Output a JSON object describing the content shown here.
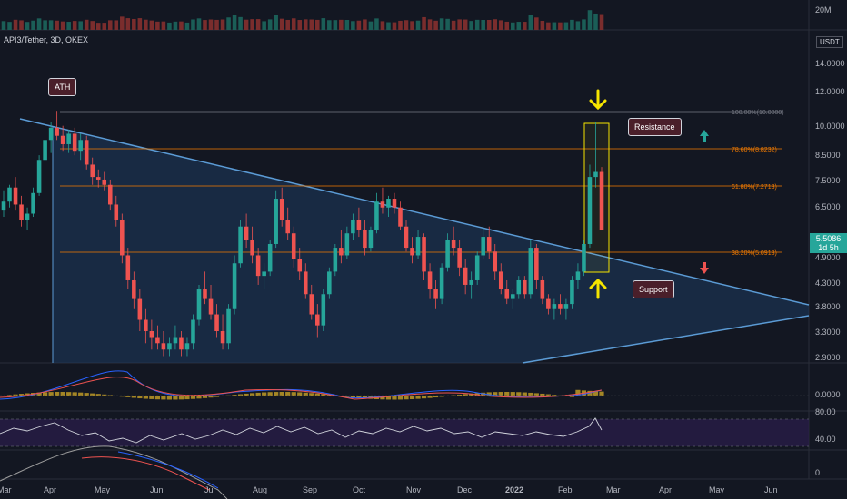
{
  "legend": {
    "symbol": "API3/Tether, 3D, OKEX"
  },
  "currency_badge": "USDT",
  "last_price": {
    "value": "5.5086",
    "countdown": "1d 5h",
    "color": "#26a69a"
  },
  "callouts": {
    "ath": "ATH",
    "resistance": "Resistance",
    "support": "Support"
  },
  "colors": {
    "up": "#26a69a",
    "down": "#ef5350",
    "triangle_fill": "#1e3a5f",
    "fib_line": "#f57c00",
    "trend_line": "#5b9bd5",
    "arrow_yellow": "#f5e400",
    "rsi_band": "#2a1e4a"
  },
  "price_axis": [
    "14.0000",
    "12.0000",
    "10.0000",
    "8.5000",
    "7.5000",
    "6.5000",
    "4.9000",
    "4.3000",
    "3.8000",
    "3.3000",
    "2.9000"
  ],
  "volume_axis": "20M",
  "macd_axis": "0.0000",
  "rsi_axis": [
    "80.00",
    "40.00"
  ],
  "bottom_axis": "0",
  "time_axis": [
    "Mar",
    "Apr",
    "May",
    "Jun",
    "Jul",
    "Aug",
    "Sep",
    "Oct",
    "Nov",
    "Dec",
    "2022",
    "Feb",
    "Mar",
    "Apr",
    "May",
    "Jun"
  ],
  "fib_levels": [
    {
      "label": "100.00%(10.0000)"
    },
    {
      "label": "78.60%(8.8232)"
    },
    {
      "label": "61.80%(7.2713)"
    },
    {
      "label": "38.20%(5.0913)"
    }
  ],
  "chart_data": {
    "type": "candlestick",
    "title": "API3/Tether, 3D, OKEX",
    "price_scale": "log",
    "ylim": [
      2.7,
      15.5
    ],
    "candles_ohlc": [
      [
        6.1,
        6.8,
        5.9,
        6.4
      ],
      [
        6.4,
        7.0,
        6.2,
        6.9
      ],
      [
        6.9,
        7.3,
        6.1,
        6.3
      ],
      [
        6.3,
        6.6,
        5.6,
        5.8
      ],
      [
        5.8,
        6.2,
        5.5,
        6.0
      ],
      [
        6.0,
        6.9,
        5.9,
        6.7
      ],
      [
        6.7,
        8.2,
        6.6,
        8.0
      ],
      [
        8.0,
        9.2,
        7.8,
        8.9
      ],
      [
        8.9,
        9.8,
        8.3,
        9.5
      ],
      [
        9.5,
        10.4,
        8.9,
        9.1
      ],
      [
        9.1,
        9.6,
        8.4,
        8.7
      ],
      [
        8.7,
        9.4,
        8.3,
        9.2
      ],
      [
        9.2,
        9.5,
        8.2,
        8.4
      ],
      [
        8.4,
        9.2,
        8.0,
        8.9
      ],
      [
        8.9,
        9.1,
        7.6,
        7.8
      ],
      [
        7.8,
        8.1,
        7.0,
        7.3
      ],
      [
        7.3,
        7.6,
        6.9,
        7.2
      ],
      [
        7.2,
        7.5,
        6.8,
        7.0
      ],
      [
        7.0,
        7.2,
        6.1,
        6.3
      ],
      [
        6.3,
        6.6,
        5.6,
        5.8
      ],
      [
        5.8,
        6.0,
        4.6,
        4.8
      ],
      [
        4.8,
        5.0,
        4.0,
        4.2
      ],
      [
        4.2,
        4.4,
        3.6,
        3.8
      ],
      [
        3.8,
        4.0,
        3.2,
        3.4
      ],
      [
        3.4,
        3.6,
        3.0,
        3.2
      ],
      [
        3.2,
        3.4,
        2.9,
        3.1
      ],
      [
        3.1,
        3.3,
        2.9,
        3.0
      ],
      [
        3.0,
        3.2,
        2.8,
        2.9
      ],
      [
        2.9,
        3.1,
        2.8,
        3.0
      ],
      [
        3.0,
        3.3,
        2.9,
        3.1
      ],
      [
        3.1,
        3.2,
        2.8,
        2.9
      ],
      [
        2.9,
        3.1,
        2.8,
        3.0
      ],
      [
        3.0,
        3.5,
        2.9,
        3.4
      ],
      [
        3.4,
        4.1,
        3.3,
        4.0
      ],
      [
        4.0,
        4.4,
        3.7,
        3.8
      ],
      [
        3.8,
        4.1,
        3.4,
        3.5
      ],
      [
        3.5,
        3.7,
        3.1,
        3.2
      ],
      [
        3.2,
        3.5,
        2.9,
        3.0
      ],
      [
        3.0,
        3.7,
        2.9,
        3.6
      ],
      [
        3.6,
        4.8,
        3.5,
        4.6
      ],
      [
        4.6,
        5.8,
        4.5,
        5.6
      ],
      [
        5.6,
        6.0,
        5.0,
        5.2
      ],
      [
        5.2,
        5.6,
        4.6,
        4.8
      ],
      [
        4.8,
        5.0,
        4.1,
        4.3
      ],
      [
        4.3,
        4.6,
        4.0,
        4.4
      ],
      [
        4.4,
        5.2,
        4.3,
        5.1
      ],
      [
        5.1,
        6.8,
        5.0,
        6.5
      ],
      [
        6.5,
        6.9,
        5.6,
        5.8
      ],
      [
        5.8,
        6.2,
        5.2,
        5.4
      ],
      [
        5.4,
        5.6,
        4.5,
        4.7
      ],
      [
        4.7,
        5.0,
        4.2,
        4.4
      ],
      [
        4.4,
        4.6,
        3.8,
        3.9
      ],
      [
        3.9,
        4.1,
        3.4,
        3.5
      ],
      [
        3.5,
        3.7,
        3.1,
        3.3
      ],
      [
        3.3,
        4.0,
        3.2,
        3.9
      ],
      [
        3.9,
        4.5,
        3.8,
        4.4
      ],
      [
        4.4,
        5.1,
        4.3,
        5.0
      ],
      [
        5.0,
        5.5,
        4.6,
        4.8
      ],
      [
        4.8,
        5.6,
        4.7,
        5.4
      ],
      [
        5.4,
        6.0,
        5.2,
        5.8
      ],
      [
        5.8,
        6.2,
        5.3,
        5.5
      ],
      [
        5.5,
        5.8,
        4.8,
        5.0
      ],
      [
        5.0,
        5.6,
        4.9,
        5.5
      ],
      [
        5.5,
        6.7,
        5.4,
        6.4
      ],
      [
        6.4,
        6.9,
        6.0,
        6.2
      ],
      [
        6.2,
        6.6,
        5.9,
        6.5
      ],
      [
        6.5,
        6.7,
        6.0,
        6.2
      ],
      [
        6.2,
        6.4,
        5.5,
        5.6
      ],
      [
        5.6,
        5.8,
        4.9,
        5.0
      ],
      [
        5.0,
        5.3,
        4.6,
        4.8
      ],
      [
        4.8,
        5.5,
        4.7,
        5.3
      ],
      [
        5.3,
        5.4,
        4.2,
        4.4
      ],
      [
        4.4,
        4.6,
        3.8,
        4.0
      ],
      [
        4.0,
        4.2,
        3.6,
        3.8
      ],
      [
        3.8,
        4.6,
        3.7,
        4.5
      ],
      [
        4.5,
        5.4,
        4.4,
        5.2
      ],
      [
        5.2,
        5.6,
        4.8,
        5.0
      ],
      [
        5.0,
        5.2,
        4.3,
        4.5
      ],
      [
        4.5,
        4.7,
        3.9,
        4.1
      ],
      [
        4.1,
        4.4,
        3.8,
        4.2
      ],
      [
        4.2,
        4.9,
        4.1,
        4.8
      ],
      [
        4.8,
        5.6,
        4.7,
        5.3
      ],
      [
        5.3,
        5.6,
        4.7,
        4.9
      ],
      [
        4.9,
        5.1,
        4.2,
        4.4
      ],
      [
        4.4,
        4.6,
        3.9,
        4.0
      ],
      [
        4.0,
        4.2,
        3.7,
        3.8
      ],
      [
        3.8,
        4.0,
        3.6,
        3.9
      ],
      [
        3.9,
        4.3,
        3.8,
        4.2
      ],
      [
        4.2,
        4.3,
        3.8,
        3.9
      ],
      [
        3.9,
        5.2,
        3.8,
        5.0
      ],
      [
        5.0,
        5.1,
        4.0,
        4.2
      ],
      [
        4.2,
        4.3,
        3.7,
        3.8
      ],
      [
        3.8,
        3.9,
        3.5,
        3.6
      ],
      [
        3.6,
        3.8,
        3.4,
        3.7
      ],
      [
        3.7,
        3.9,
        3.5,
        3.6
      ],
      [
        3.6,
        3.8,
        3.4,
        3.7
      ],
      [
        3.7,
        4.3,
        3.6,
        4.2
      ],
      [
        4.2,
        4.6,
        4.0,
        4.4
      ],
      [
        4.4,
        5.2,
        4.3,
        5.1
      ],
      [
        5.1,
        7.8,
        5.0,
        7.3
      ],
      [
        7.3,
        9.8,
        6.9,
        7.5
      ],
      [
        7.5,
        7.7,
        5.5,
        5.5
      ]
    ]
  }
}
